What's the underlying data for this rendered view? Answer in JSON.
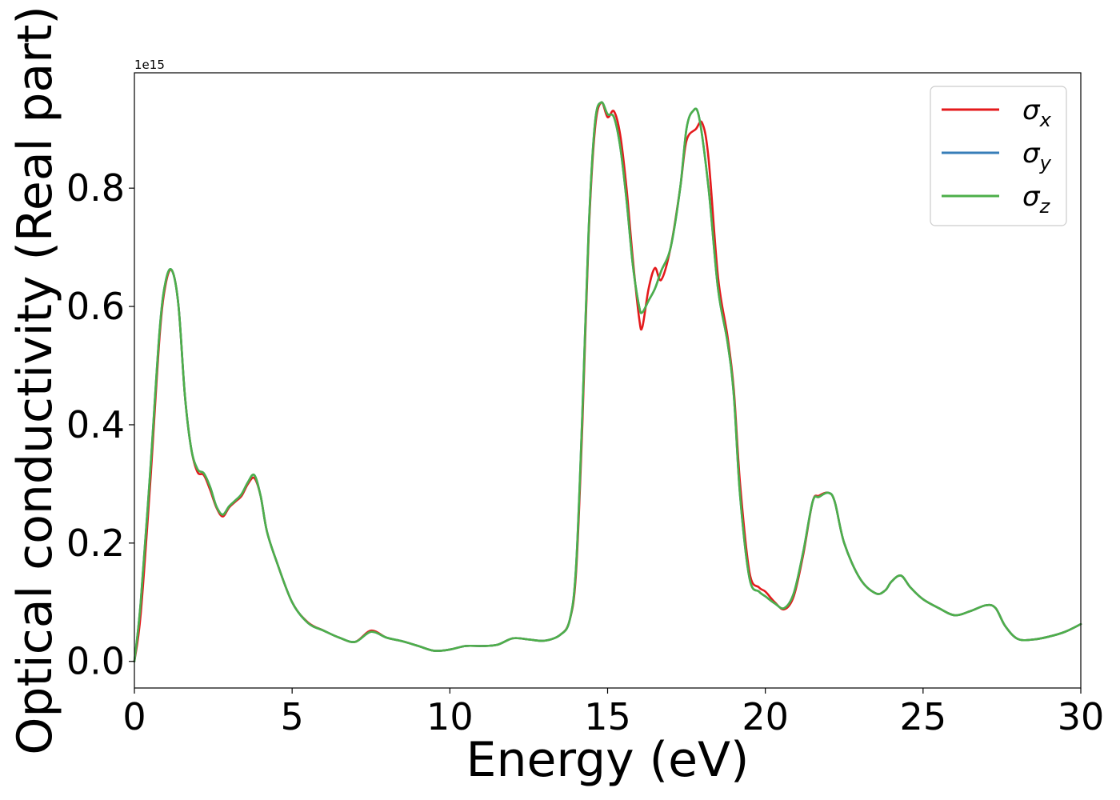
{
  "chart_data": {
    "type": "line",
    "title": "",
    "xlabel": "Energy (eV)",
    "ylabel": "Optical conductivity (Real part)",
    "y_offset_label": "1e15",
    "xlim": [
      0,
      30
    ],
    "ylim": [
      -0.045,
      0.995
    ],
    "xticks": [
      0,
      5,
      10,
      15,
      20,
      25,
      30
    ],
    "xtick_labels": [
      "0",
      "5",
      "10",
      "15",
      "20",
      "25",
      "30"
    ],
    "yticks": [
      0.0,
      0.2,
      0.4,
      0.6,
      0.8
    ],
    "ytick_labels": [
      "0.0",
      "0.2",
      "0.4",
      "0.6",
      "0.8"
    ],
    "grid": false,
    "legend_position": "top-right",
    "series": [
      {
        "name": "σx",
        "base": "σ",
        "sub": "x",
        "color": "#e41a1c",
        "x": [
          0,
          0.2,
          0.5,
          0.8,
          1.0,
          1.2,
          1.4,
          1.6,
          1.8,
          2.0,
          2.2,
          2.4,
          2.6,
          2.8,
          3.0,
          3.2,
          3.4,
          3.6,
          3.8,
          4.0,
          4.2,
          4.5,
          5.0,
          5.5,
          6.0,
          6.5,
          7.0,
          7.5,
          8.0,
          8.5,
          9.0,
          9.5,
          10.0,
          10.5,
          11.0,
          11.5,
          12.0,
          12.5,
          13.0,
          13.5,
          13.8,
          14.0,
          14.2,
          14.4,
          14.6,
          14.8,
          15.0,
          15.2,
          15.4,
          15.6,
          15.8,
          16.0,
          16.1,
          16.3,
          16.5,
          16.7,
          17.0,
          17.3,
          17.5,
          17.8,
          18.0,
          18.2,
          18.5,
          18.8,
          19.0,
          19.2,
          19.5,
          19.8,
          20.0,
          20.3,
          20.6,
          20.9,
          21.2,
          21.5,
          21.7,
          22.0,
          22.2,
          22.5,
          23.0,
          23.5,
          23.8,
          24.0,
          24.3,
          24.6,
          25.0,
          25.5,
          26.0,
          26.5,
          27.0,
          27.3,
          27.6,
          28.0,
          28.5,
          29.0,
          29.5,
          30.0
        ],
        "values": [
          0.0,
          0.08,
          0.3,
          0.55,
          0.64,
          0.66,
          0.6,
          0.45,
          0.36,
          0.32,
          0.315,
          0.29,
          0.26,
          0.245,
          0.26,
          0.27,
          0.28,
          0.3,
          0.31,
          0.28,
          0.22,
          0.17,
          0.1,
          0.066,
          0.052,
          0.04,
          0.033,
          0.052,
          0.04,
          0.034,
          0.026,
          0.018,
          0.02,
          0.026,
          0.026,
          0.028,
          0.039,
          0.037,
          0.035,
          0.045,
          0.07,
          0.15,
          0.4,
          0.72,
          0.9,
          0.945,
          0.92,
          0.93,
          0.89,
          0.8,
          0.68,
          0.58,
          0.565,
          0.63,
          0.665,
          0.645,
          0.7,
          0.8,
          0.88,
          0.9,
          0.91,
          0.85,
          0.65,
          0.55,
          0.46,
          0.3,
          0.15,
          0.125,
          0.118,
          0.1,
          0.088,
          0.11,
          0.18,
          0.27,
          0.28,
          0.285,
          0.27,
          0.2,
          0.14,
          0.115,
          0.12,
          0.135,
          0.145,
          0.125,
          0.105,
          0.09,
          0.078,
          0.085,
          0.095,
          0.09,
          0.06,
          0.038,
          0.037,
          0.042,
          0.05,
          0.063
        ]
      },
      {
        "name": "σy",
        "base": "σ",
        "sub": "y",
        "color": "#377eb8",
        "x": [
          0,
          0.2,
          0.5,
          0.8,
          1.0,
          1.2,
          1.4,
          1.6,
          1.8,
          2.0,
          2.2,
          2.4,
          2.6,
          2.8,
          3.0,
          3.2,
          3.4,
          3.6,
          3.8,
          4.0,
          4.2,
          4.5,
          5.0,
          5.5,
          6.0,
          6.5,
          7.0,
          7.5,
          8.0,
          8.5,
          9.0,
          9.5,
          10.0,
          10.5,
          11.0,
          11.5,
          12.0,
          12.5,
          13.0,
          13.5,
          13.8,
          14.0,
          14.2,
          14.4,
          14.6,
          14.8,
          15.0,
          15.2,
          15.4,
          15.6,
          15.8,
          16.0,
          16.1,
          16.3,
          16.5,
          16.7,
          17.0,
          17.3,
          17.5,
          17.7,
          17.9,
          18.2,
          18.5,
          18.8,
          19.0,
          19.2,
          19.5,
          19.8,
          20.0,
          20.3,
          20.6,
          20.9,
          21.2,
          21.5,
          21.7,
          22.0,
          22.2,
          22.5,
          23.0,
          23.5,
          23.8,
          24.0,
          24.3,
          24.6,
          25.0,
          25.5,
          26.0,
          26.5,
          27.0,
          27.3,
          27.6,
          28.0,
          28.5,
          29.0,
          29.5,
          30.0
        ],
        "values": [
          0.0,
          0.1,
          0.32,
          0.56,
          0.645,
          0.66,
          0.6,
          0.45,
          0.36,
          0.325,
          0.318,
          0.295,
          0.262,
          0.248,
          0.262,
          0.272,
          0.283,
          0.303,
          0.315,
          0.28,
          0.22,
          0.17,
          0.1,
          0.065,
          0.052,
          0.04,
          0.033,
          0.05,
          0.04,
          0.034,
          0.026,
          0.018,
          0.02,
          0.026,
          0.026,
          0.028,
          0.039,
          0.037,
          0.035,
          0.045,
          0.07,
          0.16,
          0.42,
          0.73,
          0.91,
          0.945,
          0.925,
          0.92,
          0.87,
          0.78,
          0.67,
          0.6,
          0.59,
          0.61,
          0.63,
          0.66,
          0.7,
          0.8,
          0.9,
          0.93,
          0.92,
          0.8,
          0.63,
          0.54,
          0.45,
          0.28,
          0.14,
          0.118,
          0.11,
          0.098,
          0.09,
          0.115,
          0.185,
          0.27,
          0.278,
          0.285,
          0.27,
          0.2,
          0.14,
          0.115,
          0.12,
          0.135,
          0.145,
          0.125,
          0.105,
          0.09,
          0.078,
          0.085,
          0.095,
          0.09,
          0.06,
          0.038,
          0.037,
          0.042,
          0.05,
          0.063
        ]
      },
      {
        "name": "σz",
        "base": "σ",
        "sub": "z",
        "color": "#4daf4a",
        "x": [
          0,
          0.2,
          0.5,
          0.8,
          1.0,
          1.2,
          1.4,
          1.6,
          1.8,
          2.0,
          2.2,
          2.4,
          2.6,
          2.8,
          3.0,
          3.2,
          3.4,
          3.6,
          3.8,
          4.0,
          4.2,
          4.5,
          5.0,
          5.5,
          6.0,
          6.5,
          7.0,
          7.5,
          8.0,
          8.5,
          9.0,
          9.5,
          10.0,
          10.5,
          11.0,
          11.5,
          12.0,
          12.5,
          13.0,
          13.5,
          13.8,
          14.0,
          14.2,
          14.4,
          14.6,
          14.8,
          15.0,
          15.2,
          15.4,
          15.6,
          15.8,
          16.0,
          16.1,
          16.3,
          16.5,
          16.7,
          17.0,
          17.3,
          17.5,
          17.7,
          17.9,
          18.2,
          18.5,
          18.8,
          19.0,
          19.2,
          19.5,
          19.8,
          20.0,
          20.3,
          20.6,
          20.9,
          21.2,
          21.5,
          21.7,
          22.0,
          22.2,
          22.5,
          23.0,
          23.5,
          23.8,
          24.0,
          24.3,
          24.6,
          25.0,
          25.5,
          26.0,
          26.5,
          27.0,
          27.3,
          27.6,
          28.0,
          28.5,
          29.0,
          29.5,
          30.0
        ],
        "values": [
          0.0,
          0.1,
          0.32,
          0.56,
          0.645,
          0.66,
          0.6,
          0.45,
          0.36,
          0.325,
          0.318,
          0.295,
          0.262,
          0.248,
          0.262,
          0.272,
          0.283,
          0.303,
          0.315,
          0.28,
          0.22,
          0.17,
          0.1,
          0.065,
          0.052,
          0.04,
          0.033,
          0.05,
          0.04,
          0.034,
          0.026,
          0.018,
          0.02,
          0.026,
          0.026,
          0.028,
          0.039,
          0.037,
          0.035,
          0.045,
          0.07,
          0.16,
          0.42,
          0.73,
          0.91,
          0.945,
          0.925,
          0.92,
          0.87,
          0.78,
          0.67,
          0.6,
          0.59,
          0.61,
          0.63,
          0.66,
          0.7,
          0.8,
          0.9,
          0.93,
          0.92,
          0.8,
          0.63,
          0.54,
          0.45,
          0.28,
          0.14,
          0.118,
          0.11,
          0.098,
          0.09,
          0.115,
          0.185,
          0.27,
          0.278,
          0.285,
          0.27,
          0.2,
          0.14,
          0.115,
          0.12,
          0.135,
          0.145,
          0.125,
          0.105,
          0.09,
          0.078,
          0.085,
          0.095,
          0.09,
          0.06,
          0.038,
          0.037,
          0.042,
          0.05,
          0.063
        ]
      }
    ]
  }
}
